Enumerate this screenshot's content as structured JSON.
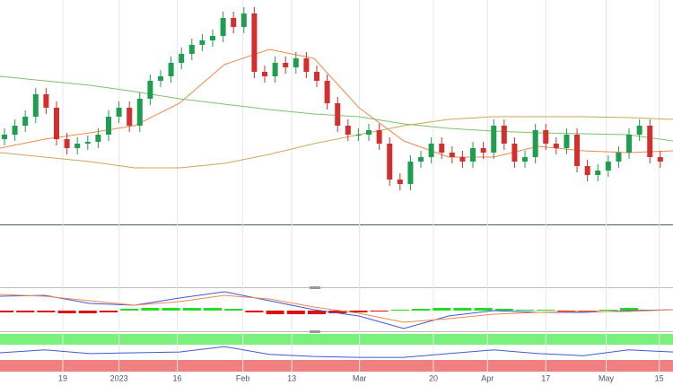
{
  "chart_data": [
    {
      "type": "candlestick",
      "x": [
        0,
        1,
        2,
        3,
        4,
        5,
        6,
        7,
        8,
        9,
        10,
        11,
        12,
        13,
        14,
        15,
        16,
        17,
        18,
        19,
        20,
        21,
        22,
        23,
        24,
        25,
        26,
        27,
        28,
        29,
        30,
        31,
        32,
        33,
        34,
        35,
        36,
        37,
        38,
        39,
        40,
        41,
        42,
        43,
        44,
        45,
        46,
        47,
        48,
        49,
        50,
        51,
        52,
        53,
        54,
        55,
        56,
        57,
        58,
        59,
        60,
        61,
        62,
        63
      ],
      "open": [
        95,
        100,
        110,
        120,
        145,
        130,
        95,
        85,
        90,
        92,
        100,
        120,
        130,
        110,
        140,
        160,
        165,
        180,
        190,
        200,
        205,
        210,
        230,
        220,
        235,
        170,
        165,
        180,
        175,
        185,
        170,
        160,
        135,
        110,
        100,
        100,
        105,
        90,
        50,
        45,
        70,
        75,
        90,
        80,
        75,
        70,
        85,
        80,
        110,
        90,
        70,
        75,
        105,
        90,
        85,
        100,
        65,
        55,
        60,
        70,
        80,
        100,
        110,
        75
      ],
      "high": [
        107,
        117,
        127,
        152,
        152,
        137,
        102,
        97,
        99,
        107,
        127,
        137,
        137,
        147,
        167,
        172,
        187,
        197,
        207,
        212,
        217,
        237,
        237,
        242,
        242,
        177,
        187,
        187,
        192,
        192,
        177,
        167,
        142,
        117,
        107,
        112,
        112,
        97,
        57,
        77,
        82,
        97,
        97,
        87,
        82,
        92,
        92,
        117,
        117,
        97,
        82,
        112,
        112,
        97,
        107,
        107,
        72,
        67,
        77,
        87,
        107,
        117,
        117,
        82
      ],
      "low": [
        88,
        93,
        103,
        113,
        123,
        88,
        78,
        78,
        83,
        85,
        93,
        113,
        103,
        103,
        133,
        153,
        158,
        173,
        183,
        193,
        198,
        203,
        213,
        213,
        163,
        158,
        158,
        168,
        168,
        163,
        153,
        128,
        103,
        93,
        93,
        93,
        83,
        43,
        38,
        38,
        63,
        68,
        73,
        68,
        63,
        63,
        73,
        73,
        83,
        63,
        63,
        68,
        83,
        78,
        78,
        58,
        48,
        48,
        53,
        63,
        73,
        93,
        68,
        63
      ],
      "close": [
        100,
        110,
        120,
        145,
        130,
        95,
        85,
        90,
        92,
        100,
        120,
        130,
        110,
        140,
        160,
        165,
        180,
        190,
        200,
        205,
        210,
        230,
        220,
        235,
        170,
        165,
        180,
        175,
        185,
        170,
        160,
        135,
        110,
        100,
        100,
        105,
        90,
        50,
        45,
        70,
        75,
        90,
        80,
        75,
        70,
        85,
        80,
        110,
        90,
        70,
        75,
        105,
        90,
        85,
        100,
        65,
        55,
        60,
        70,
        80,
        100,
        110,
        75,
        70
      ],
      "up_color": "#1e9e4e",
      "down_color": "#d32f2f",
      "lines": [
        {
          "color": "#f08a4b",
          "x": [
            -0.43,
            3.88,
            8.19,
            12.5,
            16.81,
            21.12,
            25.43,
            29.74,
            34.05,
            38.36,
            42.67,
            46.98,
            51.29,
            55.6,
            59.91,
            64.22
          ],
          "values": [
            85,
            95,
            102,
            110,
            135,
            178,
            195,
            185,
            130,
            93,
            75,
            75,
            87,
            82,
            80,
            82
          ]
        },
        {
          "color": "#7cc46a",
          "x": [
            -0.43,
            3.88,
            8.19,
            12.5,
            16.81,
            21.12,
            25.43,
            29.74,
            34.05,
            38.36,
            42.67,
            46.98,
            51.29,
            55.6,
            59.91,
            64.22
          ],
          "values": [
            165,
            160,
            155,
            148,
            140,
            134,
            128,
            123,
            120,
            112,
            107,
            104,
            102,
            101,
            100,
            93
          ]
        },
        {
          "color": "#c9a95a",
          "x": [
            -0.43,
            3.88,
            8.19,
            12.5,
            16.81,
            21.12,
            25.43,
            29.74,
            34.05,
            38.36,
            42.67,
            46.98,
            51.29,
            55.6,
            59.91,
            64.22
          ],
          "values": [
            80,
            75,
            70,
            63,
            63,
            68,
            78,
            90,
            100,
            110,
            117,
            120,
            120,
            120,
            119,
            117
          ]
        }
      ],
      "xlim": [
        -0.43,
        64.22
      ],
      "ylim": [
        0,
        250
      ],
      "xticks": [
        {
          "value": 5.6,
          "label": "19"
        },
        {
          "value": 11.0,
          "label": "2023"
        },
        {
          "value": 16.6,
          "label": "16"
        },
        {
          "value": 22.9,
          "label": "Feb"
        },
        {
          "value": 27.6,
          "label": "13"
        },
        {
          "value": 34.1,
          "label": "Mar"
        },
        {
          "value": 41.2,
          "label": "20"
        },
        {
          "value": 46.4,
          "label": "Apr"
        },
        {
          "value": 52.0,
          "label": "17"
        },
        {
          "value": 57.8,
          "label": "May"
        },
        {
          "value": 62.9,
          "label": "15"
        }
      ],
      "grid": true
    },
    {
      "type": "macd",
      "series": [
        {
          "color": "#3b5bdb",
          "x": [
            -0.43,
            3.88,
            8.19,
            12.5,
            16.81,
            21.12,
            25.43,
            29.74,
            34.05,
            38.36,
            42.67,
            46.98,
            51.29,
            55.6,
            59.91,
            64.22
          ],
          "values": [
            16,
            17,
            8,
            6,
            14,
            21,
            11,
            1,
            -6,
            -20,
            -6,
            0,
            -2,
            -2,
            0,
            1
          ]
        },
        {
          "color": "#f08a4b",
          "x": [
            -0.43,
            3.88,
            8.19,
            12.5,
            16.81,
            21.12,
            25.43,
            29.74,
            34.05,
            38.36,
            42.67,
            46.98,
            51.29,
            55.6,
            59.91,
            64.22
          ],
          "values": [
            18,
            16,
            11,
            6,
            10,
            17,
            13,
            4,
            -3,
            -13,
            -9,
            -4,
            -2,
            -1,
            -1,
            1
          ]
        }
      ],
      "histogram": {
        "x": [
          0,
          2,
          4,
          6,
          8,
          10,
          12,
          14,
          16,
          18,
          20,
          22,
          24,
          26,
          28,
          30,
          32,
          34,
          36,
          38,
          40,
          42,
          44,
          46,
          48,
          50,
          52,
          54,
          56,
          58,
          60,
          62
        ],
        "values": [
          -2,
          -2,
          -2,
          -3,
          -3,
          -2,
          2,
          3,
          3,
          3,
          3,
          2,
          -2,
          -4,
          -4,
          -4,
          -3,
          -2,
          -1,
          1,
          2,
          3,
          3,
          3,
          2,
          1,
          1,
          -1,
          -1,
          1,
          3,
          1
        ],
        "up_color": "#22dd22",
        "down_color": "#e01010"
      },
      "xlim": [
        -0.43,
        64.22
      ],
      "ylim": [
        -22,
        24
      ]
    },
    {
      "type": "rsi",
      "series": [
        {
          "color": "#3b5bdb",
          "x": [
            -0.43,
            3.88,
            8.19,
            12.5,
            16.81,
            21.12,
            25.43,
            29.74,
            34.05,
            38.36,
            42.67,
            46.98,
            51.29,
            55.6,
            59.91,
            64.22
          ],
          "values": [
            50,
            57,
            48,
            50,
            52,
            65,
            46,
            41,
            39,
            39,
            48,
            57,
            48,
            43,
            57,
            52
          ]
        }
      ],
      "xlim": [
        -0.43,
        64.22
      ],
      "ylim": [
        0,
        100
      ]
    }
  ]
}
